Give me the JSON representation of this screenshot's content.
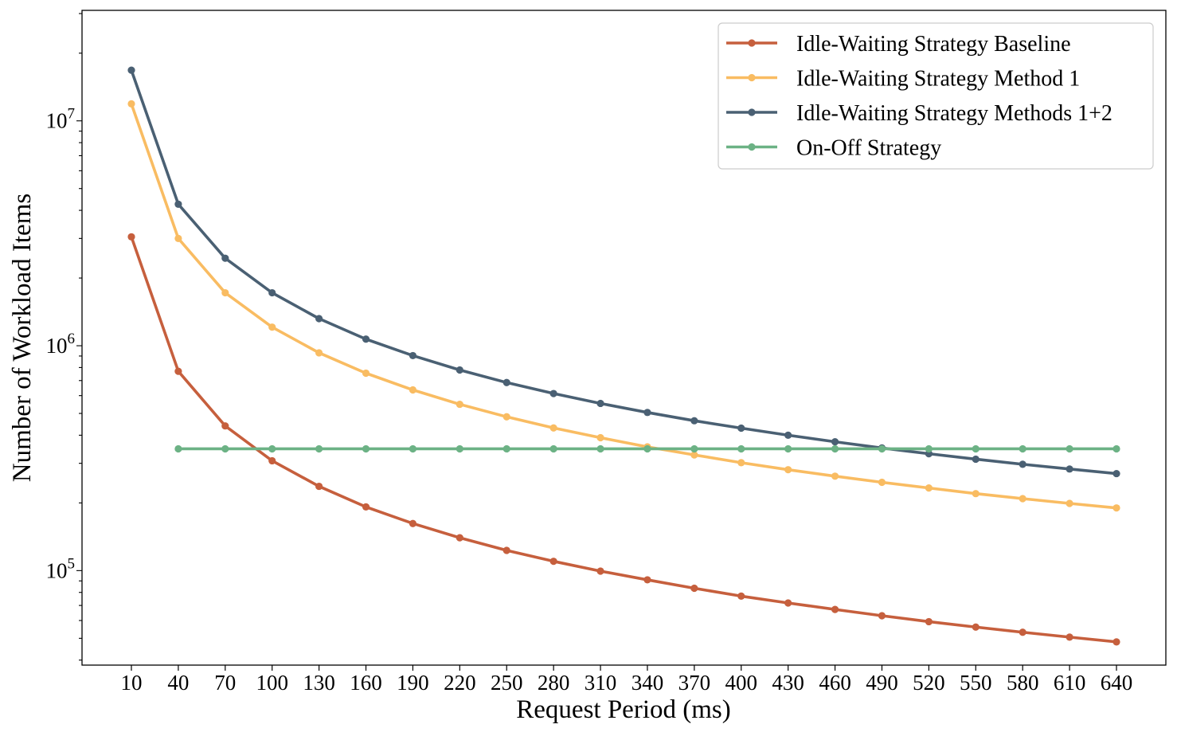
{
  "chart_data": {
    "type": "line",
    "title": "",
    "xlabel": "Request Period (ms)",
    "ylabel": "Number of Workload Items",
    "yscale": "log",
    "ylim": [
      38000,
      31000000
    ],
    "y_tick_labels": [
      {
        "value": 100000,
        "base": "10",
        "exp": "5"
      },
      {
        "value": 1000000,
        "base": "10",
        "exp": "6"
      },
      {
        "value": 10000000,
        "base": "10",
        "exp": "7"
      }
    ],
    "x": [
      10,
      40,
      70,
      100,
      130,
      160,
      190,
      220,
      250,
      280,
      310,
      340,
      370,
      400,
      430,
      460,
      490,
      520,
      550,
      580,
      610,
      640
    ],
    "x_tick_labels": [
      "10",
      "40",
      "70",
      "100",
      "130",
      "160",
      "190",
      "220",
      "250",
      "280",
      "310",
      "340",
      "370",
      "400",
      "430",
      "460",
      "490",
      "520",
      "550",
      "580",
      "610",
      "640"
    ],
    "legend_position": "top-right",
    "series": [
      {
        "name": "Idle-Waiting Strategy Baseline",
        "color": "#c65f3d",
        "values": [
          3050000,
          770000,
          440000,
          308000,
          237000,
          192000,
          162000,
          140000,
          123000,
          110000,
          99500,
          91000,
          83500,
          77000,
          71800,
          67200,
          63000,
          59300,
          56100,
          53200,
          50600,
          48200
        ]
      },
      {
        "name": "Idle-Waiting Strategy Method 1",
        "color": "#f9bc62",
        "values": [
          11900000,
          3000000,
          1720000,
          1210000,
          930000,
          755000,
          636000,
          549000,
          483000,
          431000,
          390000,
          355000,
          327000,
          302000,
          281000,
          263000,
          247000,
          233000,
          220000,
          209000,
          199000,
          190000
        ]
      },
      {
        "name": "Idle-Waiting Strategy Methods 1+2",
        "color": "#4a6073",
        "values": [
          16800000,
          4260000,
          2450000,
          1720000,
          1320000,
          1070000,
          904000,
          780000,
          686000,
          613000,
          554000,
          505000,
          464000,
          430000,
          400000,
          374000,
          351000,
          331000,
          313000,
          297000,
          283000,
          270000
        ]
      },
      {
        "name": "On-Off Strategy",
        "color": "#6cb285",
        "x": [
          40,
          70,
          100,
          130,
          160,
          190,
          220,
          250,
          280,
          310,
          340,
          370,
          400,
          430,
          460,
          490,
          520,
          550,
          580,
          610,
          640
        ],
        "values": [
          348000,
          348000,
          348000,
          348000,
          348000,
          348000,
          348000,
          348000,
          348000,
          348000,
          348000,
          348000,
          348000,
          348000,
          348000,
          348000,
          348000,
          348000,
          348000,
          348000,
          348000
        ]
      }
    ]
  }
}
